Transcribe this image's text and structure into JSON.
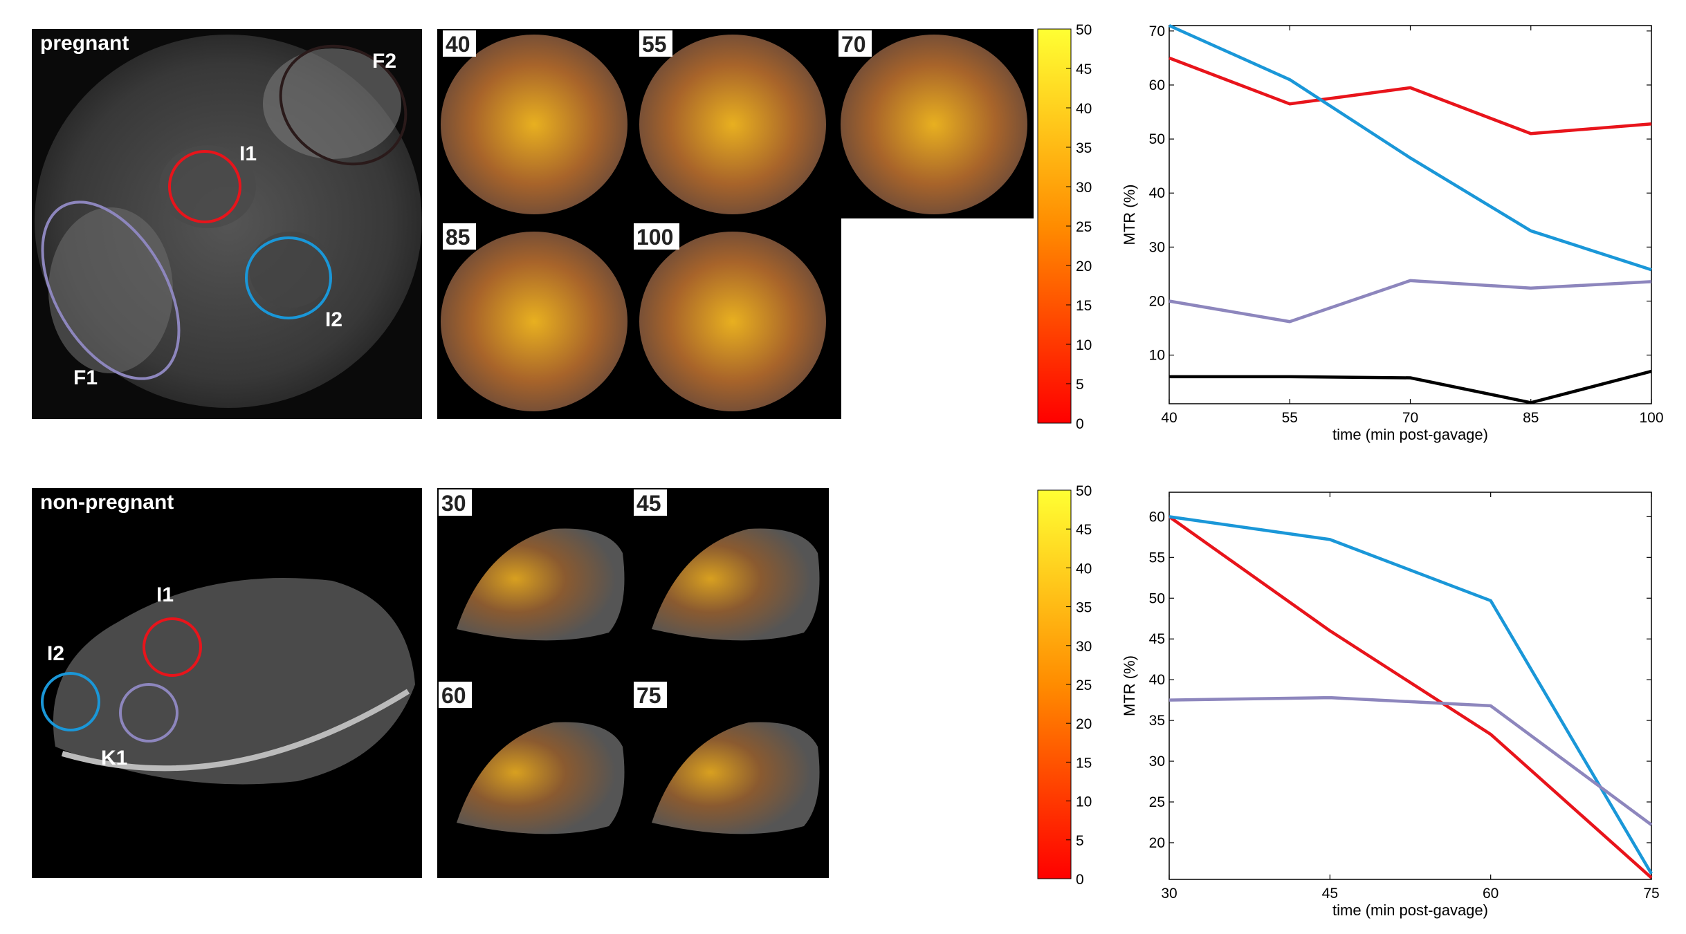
{
  "top_row": {
    "anatomy_label": "pregnant",
    "roi_labels": {
      "F2": "F2",
      "I1": "I1",
      "I2": "I2",
      "F1": "F1"
    },
    "timepoint_labels": [
      "40",
      "55",
      "70",
      "85",
      "100"
    ]
  },
  "bottom_row": {
    "anatomy_label": "non-pregnant",
    "roi_labels": {
      "I1": "I1",
      "I2": "I2",
      "K1": "K1"
    },
    "timepoint_labels": [
      "30",
      "45",
      "60",
      "75"
    ]
  },
  "colorbar": {
    "ticks": [
      "50",
      "45",
      "40",
      "35",
      "30",
      "25",
      "20",
      "15",
      "10",
      "5",
      "0"
    ],
    "range": [
      0,
      50
    ]
  },
  "colors": {
    "red": "#e8141b",
    "blue": "#1a97d8",
    "purple": "#8d86bd",
    "black": "#000000"
  },
  "chart_data": [
    {
      "type": "line",
      "title": "",
      "xlabel": "time (min post-gavage)",
      "ylabel": "MTR (%)",
      "x": [
        40,
        55,
        70,
        85,
        100
      ],
      "xlim": [
        40,
        100
      ],
      "ylim": [
        1,
        71
      ],
      "xticks": [
        "40",
        "55",
        "70",
        "85",
        "100"
      ],
      "yticks": [
        "10",
        "20",
        "30",
        "40",
        "50",
        "60",
        "70"
      ],
      "yticks_values": [
        10,
        20,
        30,
        40,
        50,
        60,
        70
      ],
      "series": [
        {
          "name": "I1",
          "color": "#e8141b",
          "values": [
            65,
            56.5,
            59.5,
            51,
            52.8
          ]
        },
        {
          "name": "I2",
          "color": "#1a97d8",
          "values": [
            71,
            61,
            46.5,
            33,
            25.8
          ]
        },
        {
          "name": "F1",
          "color": "#8d86bd",
          "values": [
            20,
            16.2,
            23.8,
            22.4,
            23.6
          ]
        },
        {
          "name": "F2",
          "color": "#000000",
          "values": [
            6,
            6,
            5.8,
            1.2,
            7
          ]
        }
      ]
    },
    {
      "type": "line",
      "title": "",
      "xlabel": "time (min post-gavage)",
      "ylabel": "MTR (%)",
      "x": [
        30,
        45,
        60,
        75
      ],
      "xlim": [
        30,
        75
      ],
      "ylim": [
        15.5,
        63
      ],
      "xticks": [
        "30",
        "45",
        "60",
        "75"
      ],
      "yticks": [
        "20",
        "25",
        "30",
        "35",
        "40",
        "45",
        "50",
        "55",
        "60"
      ],
      "yticks_values": [
        20,
        25,
        30,
        35,
        40,
        45,
        50,
        55,
        60
      ],
      "series": [
        {
          "name": "I1",
          "color": "#e8141b",
          "values": [
            60,
            46,
            33.3,
            15.7
          ]
        },
        {
          "name": "I2",
          "color": "#1a97d8",
          "values": [
            60,
            57.2,
            49.7,
            16.2
          ]
        },
        {
          "name": "K1",
          "color": "#8d86bd",
          "values": [
            37.5,
            37.8,
            36.8,
            22.2
          ]
        }
      ]
    }
  ]
}
